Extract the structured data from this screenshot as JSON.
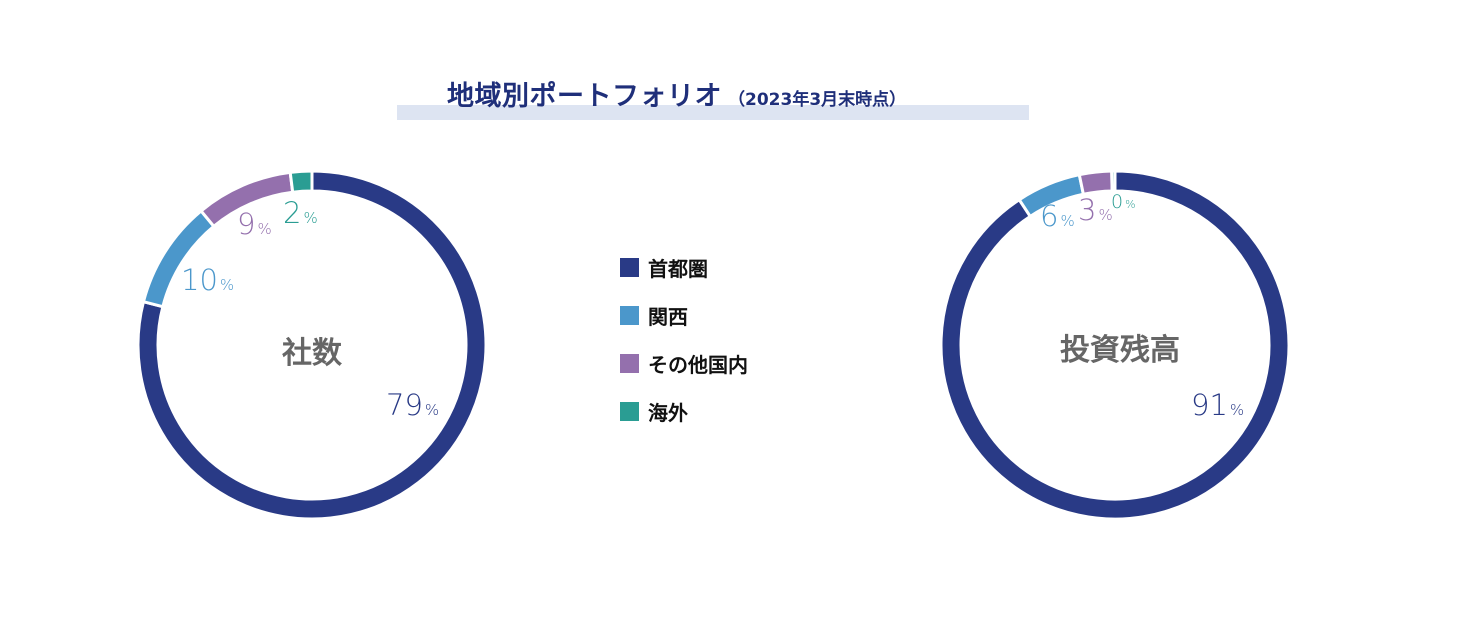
{
  "title": {
    "main": "地域別ポートフォリオ",
    "sub": "（2023年3月末時点）"
  },
  "colors": {
    "shuto": "#293a86",
    "kansai": "#4b97cb",
    "sonota": "#9470ad",
    "kaigai": "#2a9d93"
  },
  "legend": [
    {
      "label": "首都圏",
      "color": "#293a86"
    },
    {
      "label": "関西",
      "color": "#4b97cb"
    },
    {
      "label": "その他国内",
      "color": "#9470ad"
    },
    {
      "label": "海外",
      "color": "#2a9d93"
    }
  ],
  "chart_data": [
    {
      "type": "pie",
      "donut": true,
      "center_label": "社数",
      "categories": [
        "首都圏",
        "関西",
        "その他国内",
        "海外"
      ],
      "values": [
        79,
        10,
        9,
        2
      ],
      "unit": "%",
      "value_labels": [
        "79",
        "10",
        "9",
        "2"
      ]
    },
    {
      "type": "pie",
      "donut": true,
      "center_label": "投資残高",
      "categories": [
        "首都圏",
        "関西",
        "その他国内",
        "海外"
      ],
      "values": [
        91,
        6,
        3,
        0.3
      ],
      "unit": "%",
      "value_labels": [
        "91",
        "6",
        "3",
        "0"
      ]
    }
  ]
}
